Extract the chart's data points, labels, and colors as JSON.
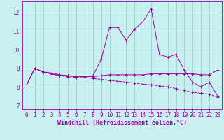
{
  "x": [
    0,
    1,
    2,
    3,
    4,
    5,
    6,
    7,
    8,
    9,
    10,
    11,
    12,
    13,
    14,
    15,
    16,
    17,
    18,
    19,
    20,
    21,
    22,
    23
  ],
  "line1": [
    8.1,
    9.0,
    8.8,
    8.7,
    8.6,
    8.6,
    8.55,
    8.55,
    8.6,
    9.5,
    11.2,
    11.2,
    10.5,
    11.1,
    11.5,
    12.2,
    9.75,
    9.6,
    9.75,
    8.9,
    8.25,
    8.0,
    8.25,
    7.5
  ],
  "line2": [
    8.1,
    9.0,
    8.8,
    8.75,
    8.65,
    8.6,
    8.55,
    8.55,
    8.55,
    8.6,
    8.65,
    8.65,
    8.65,
    8.65,
    8.65,
    8.7,
    8.7,
    8.7,
    8.7,
    8.7,
    8.7,
    8.65,
    8.65,
    8.9
  ],
  "line3": [
    8.1,
    9.0,
    8.8,
    8.7,
    8.6,
    8.55,
    8.5,
    8.5,
    8.45,
    8.4,
    8.35,
    8.3,
    8.25,
    8.2,
    8.15,
    8.1,
    8.05,
    8.0,
    7.9,
    7.8,
    7.7,
    7.65,
    7.6,
    7.45
  ],
  "line_color": "#9b009b",
  "bg_color": "#c8f0f0",
  "grid_color": "#90c8c8",
  "xlabel": "Windchill (Refroidissement éolien,°C)",
  "ylim": [
    6.8,
    12.6
  ],
  "xlim": [
    -0.5,
    23.5
  ],
  "yticks": [
    7,
    8,
    9,
    10,
    11,
    12
  ],
  "xticks": [
    0,
    1,
    2,
    3,
    4,
    5,
    6,
    7,
    8,
    9,
    10,
    11,
    12,
    13,
    14,
    15,
    16,
    17,
    18,
    19,
    20,
    21,
    22,
    23
  ],
  "tick_fontsize": 5.5,
  "xlabel_fontsize": 6.0
}
